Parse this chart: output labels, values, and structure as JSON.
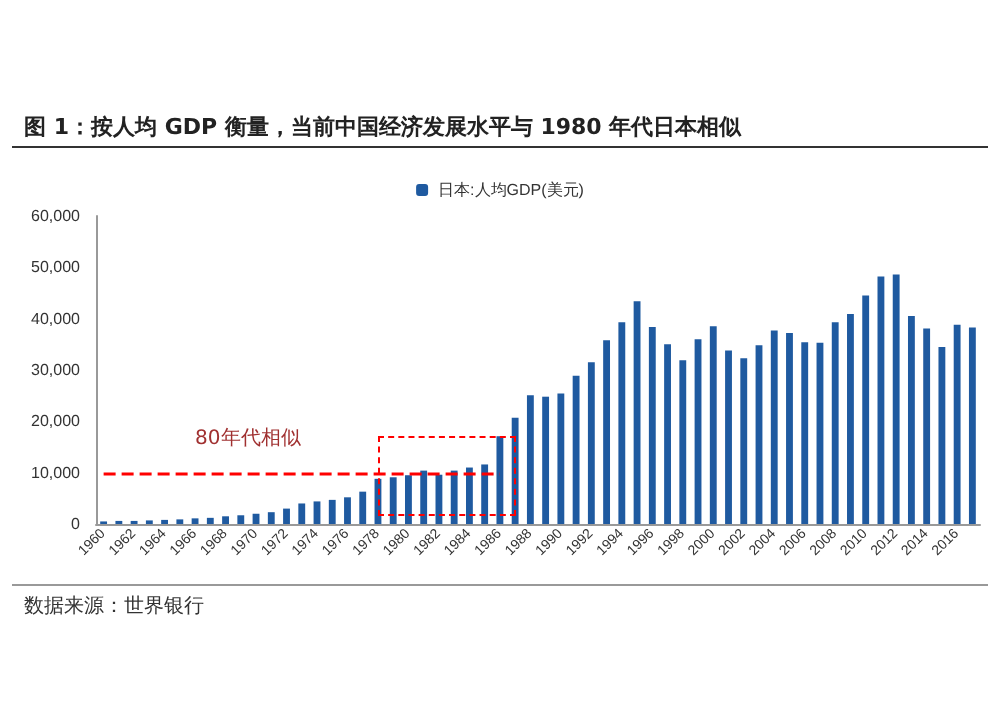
{
  "chart_data": {
    "type": "bar",
    "title": "图 1：按人均 GDP 衡量，当前中国经济发展水平与 1980 年代日本相似",
    "categories": [
      "1960",
      null,
      "1962",
      null,
      "1964",
      null,
      "1966",
      null,
      "1968",
      null,
      "1970",
      null,
      "1972",
      null,
      "1974",
      null,
      "1976",
      null,
      "1978",
      null,
      "1980",
      null,
      "1982",
      null,
      "1984",
      null,
      "1986",
      null,
      "1988",
      null,
      "1990",
      null,
      "1992",
      null,
      "1994",
      null,
      "1996",
      null,
      "1998",
      null,
      "2000",
      null,
      "2002",
      null,
      "2004",
      null,
      "2006",
      null,
      "2008",
      null,
      "2010",
      null,
      "2012",
      null,
      "2014",
      null,
      "2016",
      null
    ],
    "series": [
      {
        "name": "日本:人均GDP(美元)",
        "color": "#1f5aa0",
        "values": [
          500,
          600,
          600,
          700,
          800,
          900,
          1100,
          1200,
          1500,
          1700,
          2000,
          2300,
          3000,
          4000,
          4400,
          4700,
          5200,
          6300,
          8800,
          9100,
          9500,
          10400,
          9600,
          10400,
          11000,
          11600,
          17100,
          20700,
          25100,
          24800,
          25400,
          28900,
          31500,
          35800,
          39300,
          43400,
          38400,
          35000,
          31900,
          36000,
          38500,
          33800,
          32300,
          34800,
          37700,
          37200,
          35400,
          35300,
          39300,
          40900,
          44500,
          48200,
          48600,
          40500,
          38100,
          34500,
          38800,
          38300
        ]
      }
    ],
    "ylim": [
      0,
      60000
    ],
    "yticks": [
      0,
      {
        "value": 10000,
        "label": "10,000"
      },
      {
        "value": 20000,
        "label": "20,000"
      },
      {
        "value": 30000,
        "label": "30,000"
      },
      {
        "value": 40000,
        "label": "40,000"
      },
      {
        "value": 50000,
        "label": "50,000"
      },
      {
        "value": 60000,
        "label": "60,000"
      }
    ],
    "grid": false,
    "legend": "top",
    "ref_lines": [
      {
        "axis": "y",
        "value": 10000,
        "color": "#ff0000",
        "line_style": "dashed"
      }
    ],
    "annotations": [
      "80年代相似",
      "数据来源：世界银行"
    ]
  }
}
